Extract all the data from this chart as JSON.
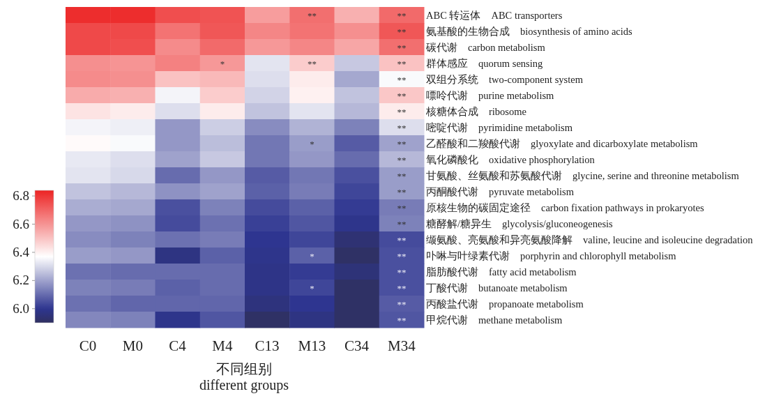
{
  "chart_data": {
    "type": "heatmap",
    "xlabel": "不同组别\ndifferent groups",
    "categories": [
      "C0",
      "M0",
      "C4",
      "M4",
      "C13",
      "M13",
      "C34",
      "M34"
    ],
    "y_categories": [
      "ABC 转运体　ABC transporters",
      "氨基酸的生物合成　biosynthesis of amino acids",
      "碳代谢　carbon metabolism",
      "群体感应　quorum sensing",
      "双组分系统　two-component system",
      "嘌呤代谢　purine metabolism",
      "核糖体合成　ribosome",
      "嘧啶代谢　pyrimidine metabolism",
      "乙醛酸和二羧酸代谢　glyoxylate and dicarboxylate metabolism",
      "氧化磷酸化　oxidative phosphorylation",
      "甘氨酸、丝氨酸和苏氨酸代谢　glycine, serine and threonine metabolism",
      "丙酮酸代谢　pyruvate metabolism",
      "原核生物的碳固定途径　carbon fixation pathways in prokaryotes",
      "糖酵解/糖异生　glycolysis/gluconeogenesis",
      "缬氨酸、亮氨酸和异亮氨酸降解　valine, leucine and isoleucine degradation",
      "卟啉与叶绿素代谢　porphyrin and chlorophyll metabolism",
      "脂肪酸代谢　fatty acid metabolism",
      "丁酸代谢　butanoate metabolism",
      "丙酸盐代谢　propanoate metabolism",
      "甲烷代谢　methane metabolism"
    ],
    "cells": [
      [
        6.82,
        6.82,
        6.75,
        6.74,
        6.58,
        6.68,
        6.54,
        6.69
      ],
      [
        6.76,
        6.76,
        6.67,
        6.73,
        6.63,
        6.67,
        6.61,
        6.73
      ],
      [
        6.76,
        6.75,
        6.62,
        6.69,
        6.59,
        6.63,
        6.56,
        6.68
      ],
      [
        6.61,
        6.6,
        6.64,
        6.59,
        6.32,
        6.48,
        6.27,
        6.5
      ],
      [
        6.62,
        6.61,
        6.5,
        6.52,
        6.31,
        6.41,
        6.21,
        6.36
      ],
      [
        6.55,
        6.54,
        6.35,
        6.48,
        6.29,
        6.4,
        6.26,
        6.49
      ],
      [
        6.43,
        6.41,
        6.31,
        6.41,
        6.26,
        6.32,
        6.24,
        6.41
      ],
      [
        6.35,
        6.34,
        6.18,
        6.28,
        6.16,
        6.23,
        6.14,
        6.31
      ],
      [
        6.38,
        6.36,
        6.18,
        6.25,
        6.12,
        6.19,
        6.07,
        6.2
      ],
      [
        6.33,
        6.31,
        6.2,
        6.27,
        6.12,
        6.18,
        6.1,
        6.24
      ],
      [
        6.32,
        6.3,
        6.1,
        6.18,
        6.07,
        6.12,
        6.05,
        6.19
      ],
      [
        6.26,
        6.24,
        6.17,
        6.2,
        6.08,
        6.13,
        6.03,
        6.19
      ],
      [
        6.22,
        6.21,
        6.05,
        6.14,
        6.04,
        6.08,
        6.01,
        6.13
      ],
      [
        6.18,
        6.17,
        6.04,
        6.11,
        6.02,
        6.06,
        5.99,
        6.14
      ],
      [
        6.16,
        6.14,
        6.11,
        6.13,
        6.0,
        6.03,
        5.94,
        6.04
      ],
      [
        6.19,
        6.18,
        5.97,
        6.08,
        5.99,
        6.08,
        5.91,
        6.05
      ],
      [
        6.11,
        6.1,
        6.1,
        6.1,
        5.98,
        6.01,
        5.95,
        6.05
      ],
      [
        6.14,
        6.13,
        6.08,
        6.1,
        5.98,
        6.03,
        5.91,
        6.05
      ],
      [
        6.11,
        6.09,
        6.09,
        6.09,
        5.96,
        6.0,
        5.91,
        6.07
      ],
      [
        6.15,
        6.14,
        5.99,
        6.06,
        5.91,
        5.97,
        5.91,
        6.06
      ]
    ],
    "cell_labels": [
      [
        null,
        null,
        null,
        null,
        null,
        "**",
        null,
        "**"
      ],
      [
        null,
        null,
        null,
        null,
        null,
        null,
        null,
        "**"
      ],
      [
        null,
        null,
        null,
        null,
        null,
        null,
        null,
        "**"
      ],
      [
        null,
        null,
        null,
        "*",
        null,
        "**",
        null,
        "**"
      ],
      [
        null,
        null,
        null,
        null,
        null,
        null,
        null,
        "**"
      ],
      [
        null,
        null,
        null,
        null,
        null,
        null,
        null,
        "**"
      ],
      [
        null,
        null,
        null,
        null,
        null,
        null,
        null,
        "**"
      ],
      [
        null,
        null,
        null,
        null,
        null,
        null,
        null,
        "**"
      ],
      [
        null,
        null,
        null,
        null,
        null,
        "*",
        null,
        "**"
      ],
      [
        null,
        null,
        null,
        null,
        null,
        null,
        null,
        "**"
      ],
      [
        null,
        null,
        null,
        null,
        null,
        null,
        null,
        "**"
      ],
      [
        null,
        null,
        null,
        null,
        null,
        null,
        null,
        "**"
      ],
      [
        null,
        null,
        null,
        null,
        null,
        null,
        null,
        "**"
      ],
      [
        null,
        null,
        null,
        null,
        null,
        null,
        null,
        "**"
      ],
      [
        null,
        null,
        null,
        null,
        null,
        null,
        null,
        "**"
      ],
      [
        null,
        null,
        null,
        null,
        null,
        "*",
        null,
        "**"
      ],
      [
        null,
        null,
        null,
        null,
        null,
        null,
        null,
        "**"
      ],
      [
        null,
        null,
        null,
        null,
        null,
        "*",
        null,
        "**"
      ],
      [
        null,
        null,
        null,
        null,
        null,
        null,
        null,
        "**"
      ],
      [
        null,
        null,
        null,
        null,
        null,
        null,
        null,
        "**"
      ]
    ],
    "clim": [
      5.9,
      6.84
    ],
    "cticks": [
      {
        "value": 6,
        "label": "6.0"
      },
      6.2,
      6.4,
      6.6,
      6.8
    ]
  }
}
